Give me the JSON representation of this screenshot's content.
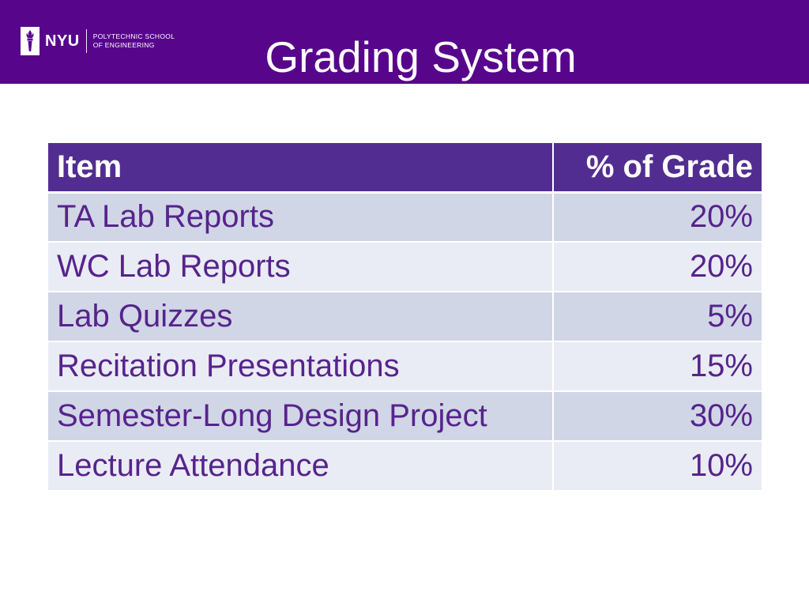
{
  "header": {
    "logo": {
      "wordmark": "NYU",
      "school_line1": "POLYTECHNIC SCHOOL",
      "school_line2": "OF ENGINEERING",
      "icon": "torch-icon"
    },
    "title": "Grading System"
  },
  "table": {
    "headers": [
      "Item",
      "% of Grade"
    ],
    "rows": [
      {
        "item": "TA Lab Reports",
        "percent": "20%"
      },
      {
        "item": "WC Lab Reports",
        "percent": "20%"
      },
      {
        "item": "Lab Quizzes",
        "percent": "5%"
      },
      {
        "item": "Recitation Presentations",
        "percent": "15%"
      },
      {
        "item": "Semester-Long Design Project",
        "percent": "30%"
      },
      {
        "item": "Lecture Attendance",
        "percent": "10%"
      }
    ]
  },
  "colors": {
    "header_bar": "#57068c",
    "table_header": "#522d91",
    "row_dark": "#d0d6e6",
    "row_light": "#e9ecf4",
    "text": "#57238c"
  }
}
